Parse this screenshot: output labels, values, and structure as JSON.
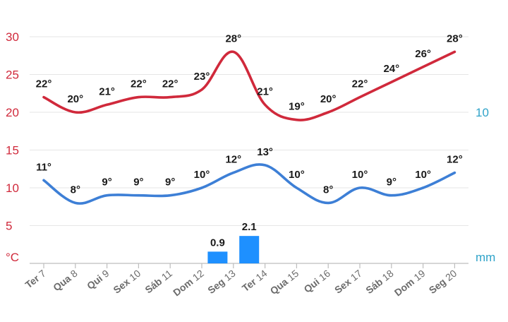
{
  "chart_data": {
    "type": "line",
    "categories": [
      "Ter 7",
      "Qua 8",
      "Qui 9",
      "Sex 10",
      "Sáb 11",
      "Dom 12",
      "Seg 13",
      "Ter 14",
      "Qua 15",
      "Qui 16",
      "Sex 17",
      "Sáb 18",
      "Dom 19",
      "Seg 20"
    ],
    "y_left": {
      "unit": "°C",
      "ticks": [
        "30",
        "25",
        "20",
        "15",
        "10",
        "5"
      ],
      "ylim": [
        0,
        30
      ]
    },
    "y_right": {
      "unit": "mm",
      "ticks": [
        "10"
      ]
    },
    "series": [
      {
        "color": "#d0293b",
        "values": [
          22,
          20,
          21,
          22,
          22,
          23,
          28,
          21,
          19,
          20,
          22,
          24,
          26,
          28
        ],
        "labels": [
          "22°",
          "20°",
          "21°",
          "22°",
          "22°",
          "23°",
          "28°",
          "21°",
          "19°",
          "20°",
          "22°",
          "24°",
          "26°",
          "28°"
        ]
      },
      {
        "color": "#3d7fd6",
        "values": [
          11,
          8,
          9,
          9,
          9,
          10,
          12,
          13,
          10,
          8,
          10,
          9,
          10,
          12
        ],
        "labels": [
          "11°",
          "8°",
          "9°",
          "9°",
          "9°",
          "10°",
          "12°",
          "13°",
          "10°",
          "8°",
          "10°",
          "9°",
          "10°",
          "12°"
        ]
      }
    ],
    "precipitation": {
      "type": "bar",
      "color": "#1e90ff",
      "values": [
        null,
        null,
        null,
        null,
        null,
        null,
        0.9,
        2.1,
        null,
        null,
        null,
        null,
        null,
        null
      ],
      "labels": [
        "",
        "",
        "",
        "",
        "",
        "",
        "0.9",
        "2.1",
        "",
        "",
        "",
        "",
        "",
        ""
      ]
    },
    "grid": true,
    "legend": "none"
  },
  "colors": {
    "temp_axis": "#d0293b",
    "precip_axis": "#2fa3c9",
    "grid": "#e6e6e6",
    "axis": "#bdbdbd"
  }
}
